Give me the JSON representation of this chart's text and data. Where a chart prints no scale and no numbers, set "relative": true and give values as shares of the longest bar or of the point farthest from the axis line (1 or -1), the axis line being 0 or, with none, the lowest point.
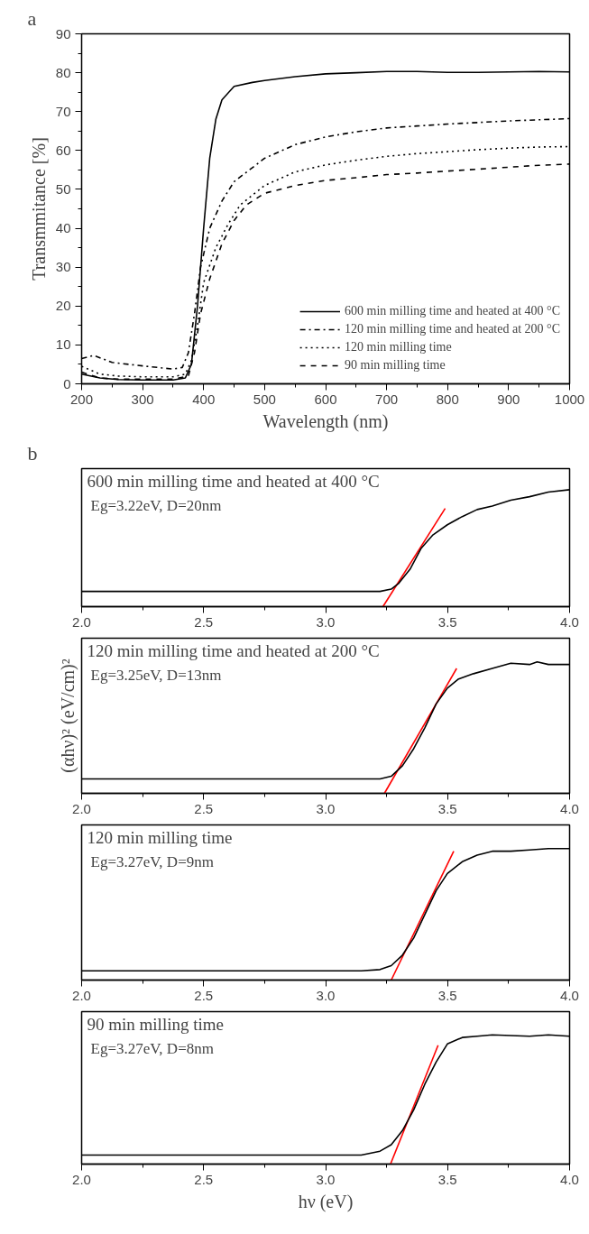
{
  "chart_data": [
    {
      "type": "line",
      "title": "a",
      "xlabel": "Wavelength (nm)",
      "ylabel": "Transmmitance [%]",
      "xlim": [
        200,
        1000
      ],
      "ylim": [
        0,
        90
      ],
      "xticks": [
        200,
        300,
        400,
        500,
        600,
        700,
        800,
        900,
        1000
      ],
      "yticks": [
        0,
        10,
        20,
        30,
        40,
        50,
        60,
        70,
        80,
        90
      ],
      "grid": false,
      "legend": "bottom right",
      "x": [
        200,
        230,
        260,
        300,
        350,
        370,
        380,
        390,
        400,
        410,
        420,
        430,
        450,
        480,
        500,
        550,
        600,
        650,
        700,
        750,
        800,
        850,
        900,
        950,
        1000
      ],
      "series": [
        {
          "name": "600 min milling time and heated at 400 °C",
          "color": "#000000",
          "line_style": "solid",
          "values": [
            2.5,
            1.5,
            1.1,
            1.0,
            1.0,
            1.5,
            5,
            20,
            40,
            58,
            68,
            73,
            76.5,
            77.5,
            78,
            79,
            79.7,
            80,
            80.3,
            80.3,
            80.1,
            80.1,
            80.2,
            80.3,
            80.2
          ]
        },
        {
          "name": "120 min milling time and heated at 200 °C",
          "color": "#000000",
          "line_style": "dashdot",
          "x": [
            200,
            220,
            250,
            300,
            350,
            365,
            375,
            385,
            395,
            410,
            430,
            450,
            500,
            550,
            600,
            650,
            700,
            750,
            800,
            850,
            900,
            950,
            1000
          ],
          "values": [
            6.5,
            7.3,
            5.5,
            4.6,
            3.8,
            4.2,
            8,
            18,
            30,
            40,
            47,
            52,
            58,
            61.5,
            63.5,
            64.8,
            65.8,
            66.3,
            66.8,
            67.2,
            67.6,
            67.9,
            68.2
          ]
        },
        {
          "name": "120 min milling time",
          "color": "#000000",
          "line_style": "dotted",
          "x": [
            200,
            230,
            260,
            300,
            350,
            370,
            380,
            390,
            400,
            420,
            440,
            460,
            500,
            550,
            600,
            650,
            700,
            750,
            800,
            850,
            900,
            950,
            1000
          ],
          "values": [
            4.5,
            2.5,
            2,
            1.8,
            1.8,
            2.5,
            6,
            15,
            26,
            35,
            41,
            46,
            51,
            54.5,
            56.3,
            57.5,
            58.5,
            59.2,
            59.7,
            60.2,
            60.6,
            60.9,
            61
          ]
        },
        {
          "name": "90 min milling time",
          "color": "#000000",
          "line_style": "dashed",
          "x": [
            200,
            230,
            260,
            300,
            350,
            375,
            385,
            395,
            410,
            430,
            450,
            470,
            500,
            550,
            600,
            650,
            700,
            750,
            800,
            850,
            900,
            950,
            1000
          ],
          "values": [
            3,
            1.5,
            1.2,
            1.2,
            1.2,
            2,
            8,
            18,
            27,
            36,
            42,
            46,
            49,
            51,
            52.3,
            53,
            53.8,
            54.2,
            54.7,
            55.2,
            55.7,
            56.2,
            56.5
          ]
        }
      ]
    },
    {
      "type": "line",
      "title": "b",
      "relative": true,
      "annotations": [
        "600 min milling time and heated at 400 °C",
        "Eg=3.22eV, D=20nm"
      ],
      "xlim": [
        2.0,
        4.0
      ],
      "xticks": [
        {
          "value": 2,
          "label": "2.0"
        },
        2.5,
        {
          "value": 3,
          "label": "3.0"
        },
        3.5,
        {
          "value": 4,
          "label": "4.0"
        }
      ],
      "grid": false,
      "series": [
        {
          "color": "#000000",
          "x": [
            2.0,
            3.223,
            3.269,
            3.3,
            3.346,
            3.392,
            3.438,
            3.499,
            3.56,
            3.621,
            3.683,
            3.759,
            3.836,
            3.913,
            4.0
          ],
          "values": [
            0.13,
            0.13,
            0.15,
            0.2,
            0.32,
            0.5,
            0.61,
            0.7,
            0.77,
            0.83,
            0.86,
            0.91,
            0.94,
            0.98,
            1.0
          ]
        },
        {
          "color": "#ff0000",
          "x": [
            3.235,
            3.49
          ],
          "values": [
            0,
            0.84
          ]
        }
      ]
    },
    {
      "type": "line",
      "relative": true,
      "ylabel": "(αhν)² (eV/cm)²",
      "annotations": [
        "120 min milling time and heated at 200 °C",
        "Eg=3.25eV, D=13nm"
      ],
      "xlim": [
        2.0,
        4.0
      ],
      "xticks": [
        {
          "value": 2,
          "label": "2.0"
        },
        2.5,
        {
          "value": 3,
          "label": "3.0"
        },
        3.5,
        {
          "value": 4,
          "label": "4.0"
        }
      ],
      "grid": false,
      "series": [
        {
          "color": "#000000",
          "x": [
            2.0,
            3.223,
            3.269,
            3.315,
            3.361,
            3.407,
            3.453,
            3.499,
            3.545,
            3.606,
            3.683,
            3.759,
            3.836,
            3.867,
            3.913,
            4.0
          ],
          "values": [
            0.11,
            0.11,
            0.13,
            0.21,
            0.34,
            0.5,
            0.68,
            0.8,
            0.87,
            0.91,
            0.95,
            0.99,
            0.98,
            1.0,
            0.98,
            0.98
          ]
        },
        {
          "color": "#ff0000",
          "x": [
            3.241,
            3.537
          ],
          "values": [
            0,
            0.95
          ]
        }
      ]
    },
    {
      "type": "line",
      "relative": true,
      "annotations": [
        "120 min milling time",
        "Eg=3.27eV, D=9nm"
      ],
      "xlim": [
        2.0,
        4.0
      ],
      "xticks": [
        {
          "value": 2,
          "label": "2.0"
        },
        2.5,
        {
          "value": 3,
          "label": "3.0"
        },
        3.5,
        {
          "value": 4,
          "label": "4.0"
        }
      ],
      "grid": false,
      "series": [
        {
          "color": "#000000",
          "x": [
            2.0,
            3.146,
            3.223,
            3.269,
            3.315,
            3.361,
            3.407,
            3.453,
            3.499,
            3.56,
            3.621,
            3.683,
            3.759,
            3.836,
            3.913,
            4.0
          ],
          "values": [
            0.07,
            0.07,
            0.08,
            0.11,
            0.19,
            0.32,
            0.5,
            0.68,
            0.81,
            0.9,
            0.95,
            0.98,
            0.98,
            0.99,
            1.0,
            1.0
          ]
        },
        {
          "color": "#ff0000",
          "x": [
            3.269,
            3.525
          ],
          "values": [
            0,
            0.98
          ]
        }
      ]
    },
    {
      "type": "line",
      "relative": true,
      "xlabel": "hν (eV)",
      "annotations": [
        "90 min milling time",
        "Eg=3.27eV, D=8nm"
      ],
      "xlim": [
        2.0,
        4.0
      ],
      "xticks": [
        {
          "value": 2,
          "label": "2.0"
        },
        2.5,
        {
          "value": 3,
          "label": "3.0"
        },
        3.5,
        {
          "value": 4,
          "label": "4.0"
        }
      ],
      "grid": false,
      "series": [
        {
          "color": "#000000",
          "x": [
            2.0,
            3.146,
            3.223,
            3.269,
            3.315,
            3.361,
            3.407,
            3.453,
            3.499,
            3.56,
            3.621,
            3.683,
            3.836,
            3.913,
            4.0
          ],
          "values": [
            0.07,
            0.07,
            0.1,
            0.15,
            0.26,
            0.42,
            0.62,
            0.79,
            0.93,
            0.98,
            0.99,
            1.0,
            0.99,
            1.0,
            0.99
          ]
        },
        {
          "color": "#ff0000",
          "x": [
            3.266,
            3.461
          ],
          "values": [
            0,
            0.92
          ]
        }
      ]
    }
  ]
}
